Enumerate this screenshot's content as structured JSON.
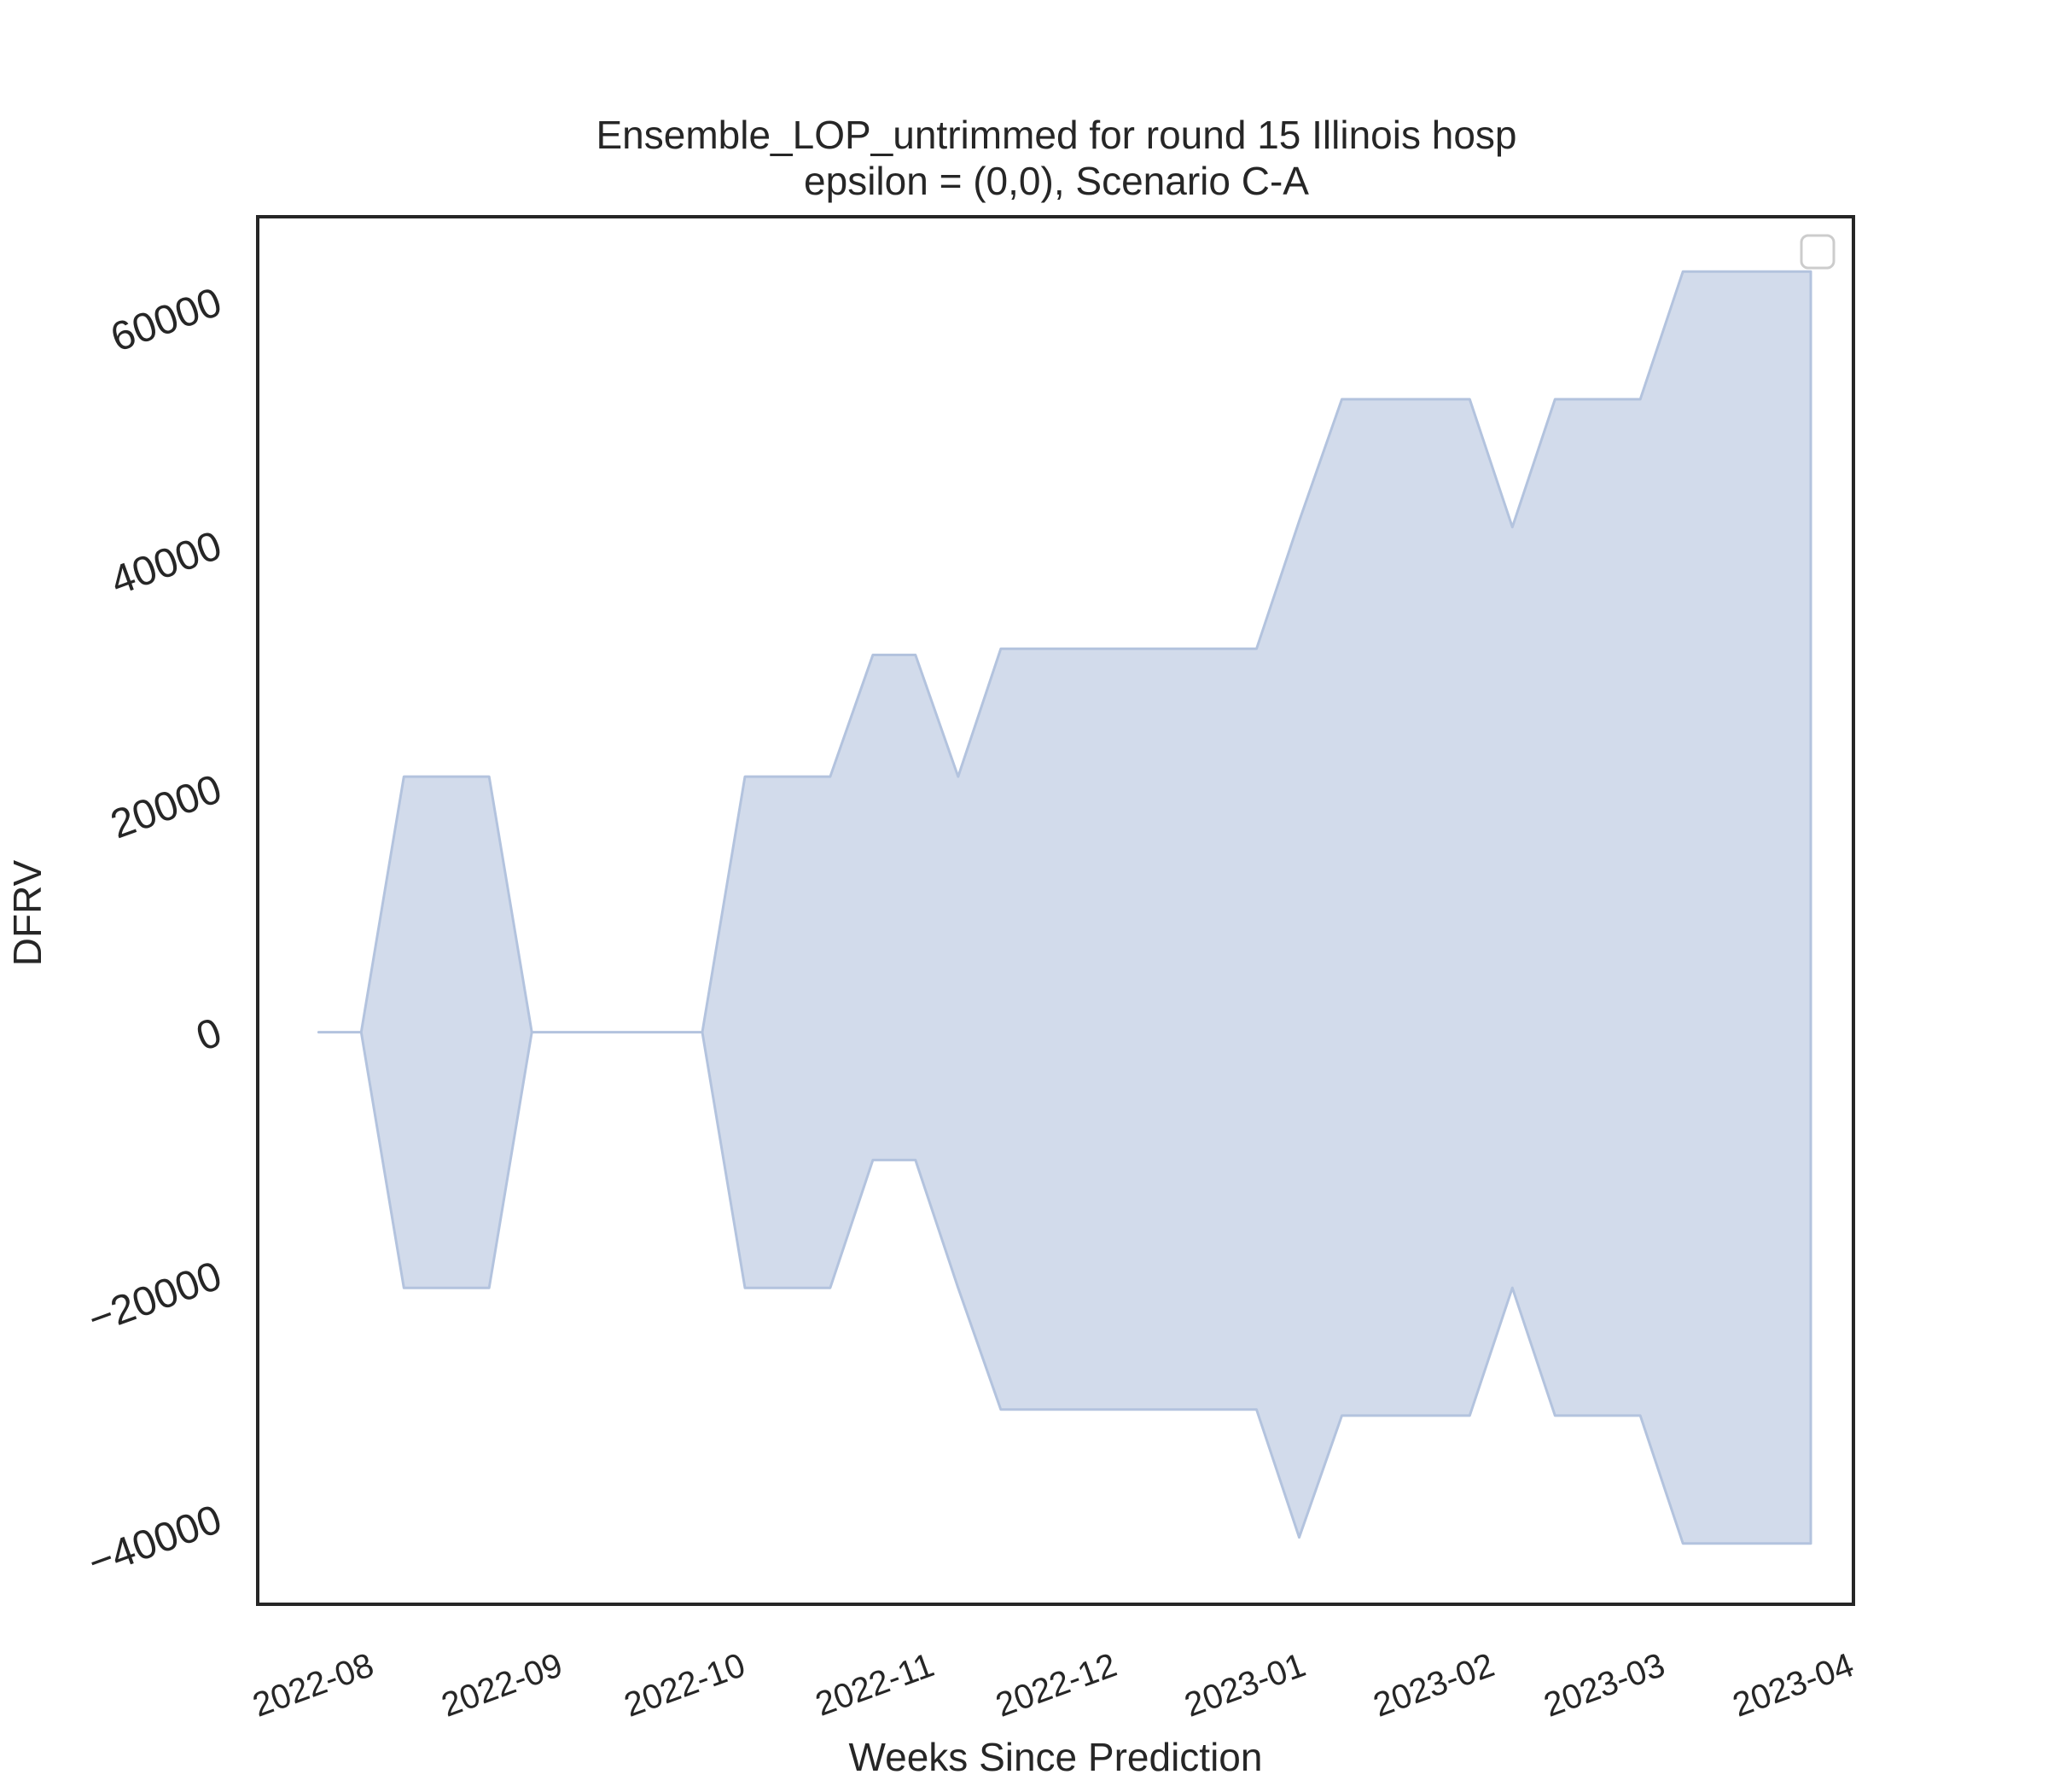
{
  "chart_data": {
    "type": "area",
    "title": "Ensemble_LOP_untrimmed for round 15 Illinois hosp",
    "subtitle": "epsilon = (0,0), Scenario C-A",
    "xlabel": "Weeks Since Prediction",
    "ylabel": "DFRV",
    "xlim": [
      "2022-07-14",
      "2023-04-02"
    ],
    "ylim": [
      -47000,
      67000
    ],
    "x_ticks": [
      "2022-08",
      "2022-09",
      "2022-10",
      "2022-11",
      "2022-12",
      "2023-01",
      "2023-02",
      "2023-03",
      "2023-04"
    ],
    "y_ticks": [
      60000,
      40000,
      20000,
      0,
      -20000,
      -40000
    ],
    "y_tick_labels": [
      "60000",
      "40000",
      "20000",
      "0",
      "−20000",
      "−40000"
    ],
    "grid": false,
    "legend": {
      "placement": "top-right",
      "entries": []
    },
    "fill_color": "#d2dbeb",
    "edge_color": "#b3c3de",
    "series": [
      {
        "x": [
          "2022-07-24",
          "2022-07-31",
          "2022-08-07",
          "2022-08-14",
          "2022-08-21",
          "2022-08-28",
          "2022-09-04",
          "2022-09-11",
          "2022-09-18",
          "2022-09-25",
          "2022-10-02",
          "2022-10-09",
          "2022-10-16",
          "2022-10-23",
          "2022-10-30",
          "2022-11-06",
          "2022-11-13",
          "2022-11-20",
          "2022-11-27",
          "2022-12-04",
          "2022-12-11",
          "2022-12-18",
          "2022-12-25",
          "2023-01-01",
          "2023-01-08",
          "2023-01-15",
          "2023-01-22",
          "2023-01-29",
          "2023-02-05",
          "2023-02-12",
          "2023-02-19",
          "2023-02-26",
          "2023-03-05",
          "2023-03-12",
          "2023-03-19",
          "2023-03-26"
        ],
        "upper": [
          0,
          0,
          21000,
          21000,
          21000,
          0,
          0,
          0,
          0,
          0,
          21000,
          21000,
          21000,
          31000,
          31000,
          21000,
          31500,
          31500,
          31500,
          31500,
          31500,
          31500,
          31500,
          42000,
          52000,
          52000,
          52000,
          52000,
          41500,
          52000,
          52000,
          52000,
          62500,
          62500,
          62500,
          62500
        ],
        "lower": [
          0,
          0,
          -21000,
          -21000,
          -21000,
          0,
          0,
          0,
          0,
          0,
          -21000,
          -21000,
          -21000,
          -10500,
          -10500,
          -21000,
          -31000,
          -31000,
          -31000,
          -31000,
          -31000,
          -31000,
          -31000,
          -41500,
          -31500,
          -31500,
          -31500,
          -31500,
          -21000,
          -31500,
          -31500,
          -31500,
          -42000,
          -42000,
          -42000,
          -42000
        ]
      }
    ]
  }
}
